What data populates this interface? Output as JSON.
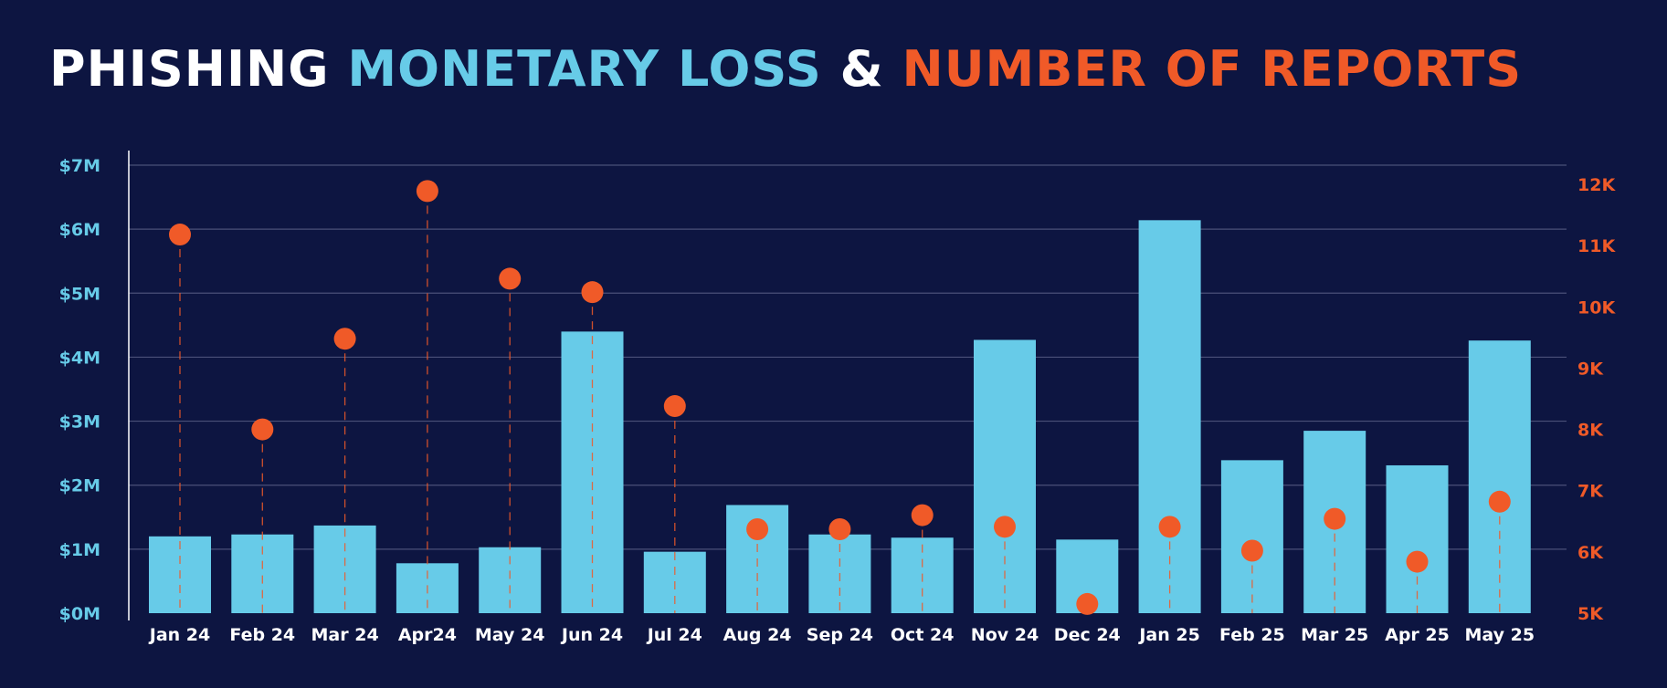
{
  "title": {
    "part1": "PHISHING ",
    "part2": "MONETARY LOSS",
    "part3": " & ",
    "part4": "NUMBER OF REPORTS"
  },
  "colors": {
    "background": "#0d1541",
    "title_white": "#ffffff",
    "loss": "#67cbe8",
    "reports": "#f05a28",
    "grid": "#4a5078"
  },
  "chart_data": {
    "type": "bar",
    "categories": [
      "Jan 24",
      "Feb 24",
      "Mar 24",
      "Apr24",
      "May 24",
      "Jun 24",
      "Jul 24",
      "Aug 24",
      "Sep 24",
      "Oct 24",
      "Nov 24",
      "Dec 24",
      "Jan 25",
      "Feb 25",
      "Mar 25",
      "Apr 25",
      "May 25"
    ],
    "series": [
      {
        "name": "MONETARY LOSS",
        "type": "bar",
        "axis": "left",
        "values": [
          1.2,
          1.23,
          1.37,
          0.78,
          1.03,
          4.4,
          0.96,
          1.69,
          1.23,
          1.18,
          4.27,
          1.15,
          6.14,
          2.39,
          2.85,
          2.31,
          4.26
        ]
      },
      {
        "name": "NUMBER OF REPORTS",
        "type": "scatter",
        "axis": "right",
        "values": [
          11180,
          8000,
          9480,
          11890,
          10460,
          10240,
          8380,
          6370,
          6370,
          6600,
          6410,
          5150,
          6410,
          6020,
          6540,
          5840,
          6820
        ]
      }
    ],
    "y_left": {
      "ylim": [
        0,
        7
      ],
      "ticks": [
        0,
        1,
        2,
        3,
        4,
        5,
        6,
        7
      ],
      "tick_labels": [
        "$0M",
        "$1M",
        "$2M",
        "$3M",
        "$4M",
        "$5M",
        "$6M",
        "$7M"
      ]
    },
    "y_right": {
      "ylim": [
        5000,
        12000
      ],
      "ticks": [
        5000,
        6000,
        7000,
        8000,
        9000,
        10000,
        11000,
        12000
      ],
      "tick_labels": [
        "5K",
        "6K",
        "7K",
        "8K",
        "9K",
        "10K",
        "11K",
        "12K"
      ]
    },
    "grid": true,
    "xlabel": "",
    "ylabel": ""
  }
}
